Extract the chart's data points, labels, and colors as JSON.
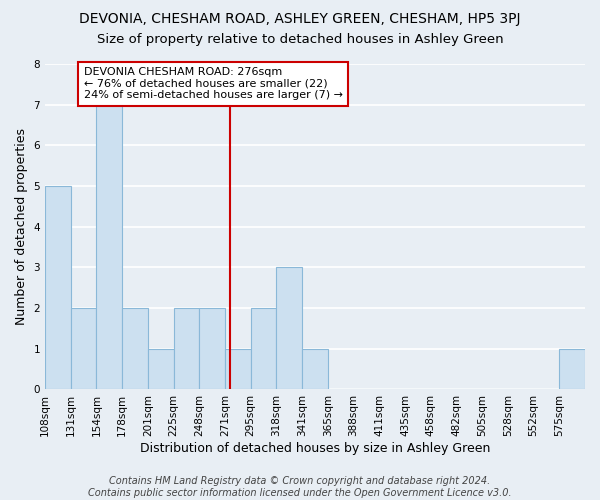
{
  "title": "DEVONIA, CHESHAM ROAD, ASHLEY GREEN, CHESHAM, HP5 3PJ",
  "subtitle": "Size of property relative to detached houses in Ashley Green",
  "xlabel": "Distribution of detached houses by size in Ashley Green",
  "ylabel": "Number of detached properties",
  "footer_line1": "Contains HM Land Registry data © Crown copyright and database right 2024.",
  "footer_line2": "Contains public sector information licensed under the Open Government Licence v3.0.",
  "bin_labels": [
    "108sqm",
    "131sqm",
    "154sqm",
    "178sqm",
    "201sqm",
    "225sqm",
    "248sqm",
    "271sqm",
    "295sqm",
    "318sqm",
    "341sqm",
    "365sqm",
    "388sqm",
    "411sqm",
    "435sqm",
    "458sqm",
    "482sqm",
    "505sqm",
    "528sqm",
    "552sqm",
    "575sqm"
  ],
  "bar_values": [
    5,
    2,
    7,
    2,
    1,
    2,
    2,
    1,
    2,
    3,
    1,
    0,
    0,
    0,
    0,
    0,
    0,
    0,
    0,
    0,
    1
  ],
  "bar_color": "#cce0f0",
  "bar_edgecolor": "#8ab8d8",
  "vline_color": "#cc0000",
  "annotation_title": "DEVONIA CHESHAM ROAD: 276sqm",
  "annotation_line1": "← 76% of detached houses are smaller (22)",
  "annotation_line2": "24% of semi-detached houses are larger (7) →",
  "annotation_box_color": "#cc0000",
  "annotation_bg": "#ffffff",
  "ylim": [
    0,
    8
  ],
  "yticks": [
    0,
    1,
    2,
    3,
    4,
    5,
    6,
    7,
    8
  ],
  "bg_color": "#e8eef4",
  "grid_color": "#ffffff",
  "title_fontsize": 10,
  "subtitle_fontsize": 9.5,
  "axis_label_fontsize": 9,
  "tick_fontsize": 7.5,
  "footer_fontsize": 7
}
